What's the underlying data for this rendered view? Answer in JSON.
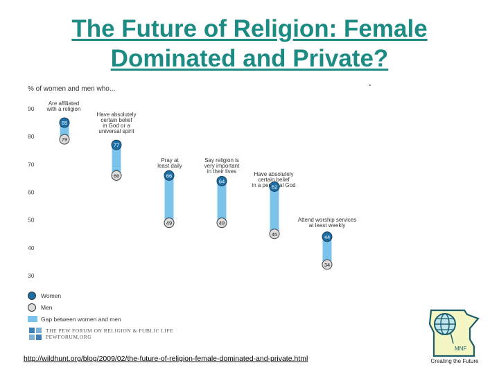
{
  "slide": {
    "title_line1": "The Future of Religion: Female",
    "title_line2": "Dominated and Private?",
    "source_url": "http://wildhunt.org/blog/2009/02/the-future-of-religion-female-dominated-and-private.html",
    "mnf_caption": "Creating the Future",
    "mnf_badge": "MNF"
  },
  "chart_data": {
    "type": "range",
    "title": "% of women and men who...",
    "ylim": [
      30,
      90
    ],
    "yticks": [
      90,
      80,
      70,
      60,
      50,
      40,
      30
    ],
    "y_tick_labels": [
      "90",
      "80",
      "70",
      "60",
      "50",
      "40",
      "30"
    ],
    "categories": [
      "Are affiliated with a religion",
      "Have absolutely certain belief in God or a universal spirit",
      "Pray at least daily",
      "Say religion is very important in their lives",
      "Have absolutely certain belief in a personal God",
      "Attend worship services at least weekly"
    ],
    "category_label_lines": [
      [
        "Are affiliated",
        "with a religion"
      ],
      [
        "Have absolutely",
        "certain belief",
        "in God or a",
        "universal spirit"
      ],
      [
        "Pray at",
        "least daily"
      ],
      [
        "Say religion is",
        "very important",
        "in their lives"
      ],
      [
        "Have absolutely",
        "certain belief",
        "in a personal God"
      ],
      [
        "Attend worship services",
        "at least weekly"
      ]
    ],
    "series": [
      {
        "name": "Women",
        "values": [
          85,
          77,
          66,
          64,
          62,
          44
        ]
      },
      {
        "name": "Men",
        "values": [
          79,
          66,
          49,
          49,
          45,
          34
        ]
      }
    ],
    "legend": [
      "Women",
      "Men",
      "Gap between women and men"
    ],
    "legend_placement": "bottom-left",
    "colors": {
      "women": "#1b6fa6",
      "men": "#dcdcdc",
      "gap": "#7cc3ec"
    },
    "grid": false
  },
  "pew_logo": {
    "line1": "THE PEW FORUM ON RELIGION & PUBLIC LIFE",
    "line2": "PEWFORUM.ORG"
  },
  "icons": [
    "globe-icon",
    "minnesota-map-icon",
    "pew-logo-icon"
  ]
}
